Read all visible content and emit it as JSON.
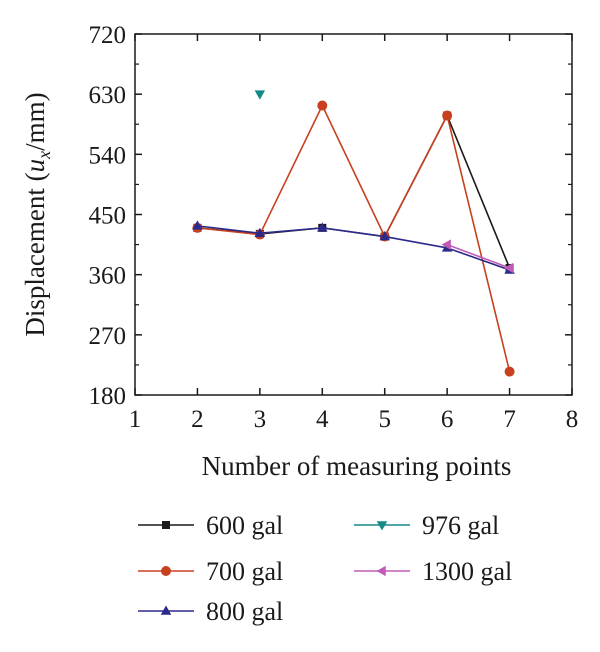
{
  "chart_data": {
    "type": "line",
    "title": "",
    "xlabel": "Number of measuring points",
    "ylabel_parts": {
      "prefix": "Displacement (",
      "var": "u",
      "sub": "x",
      "suffix": "/mm)"
    },
    "xlim": [
      1,
      8
    ],
    "ylim": [
      180,
      720
    ],
    "xticks": [
      "1",
      "2",
      "3",
      "4",
      "5",
      "6",
      "7",
      "8"
    ],
    "yticks": [
      "180",
      "270",
      "360",
      "450",
      "540",
      "630",
      "720"
    ],
    "grid": false,
    "legend_position": "bottom",
    "series": [
      {
        "name": "600 gal",
        "color": "#1a1a1a",
        "marker": "square",
        "x": [
          2,
          3,
          4,
          5,
          6,
          7
        ],
        "y": [
          430,
          421,
          430,
          417,
          598,
          370
        ]
      },
      {
        "name": "700 gal",
        "color": "#c8401e",
        "marker": "circle",
        "x": [
          2,
          3,
          4,
          5,
          6,
          7
        ],
        "y": [
          430,
          420,
          613,
          417,
          598,
          215
        ]
      },
      {
        "name": "800 gal",
        "color": "#2b2a8c",
        "marker": "triangle-up",
        "x": [
          2,
          3,
          4,
          5,
          6,
          7
        ],
        "y": [
          433,
          422,
          430,
          417,
          400,
          367
        ]
      },
      {
        "name": "976 gal",
        "color": "#138a87",
        "marker": "triangle-down",
        "x": [
          3
        ],
        "y": [
          630
        ]
      },
      {
        "name": "1300 gal",
        "color": "#c05cb8",
        "marker": "triangle-left",
        "x": [
          6,
          7
        ],
        "y": [
          405,
          370
        ]
      }
    ]
  }
}
